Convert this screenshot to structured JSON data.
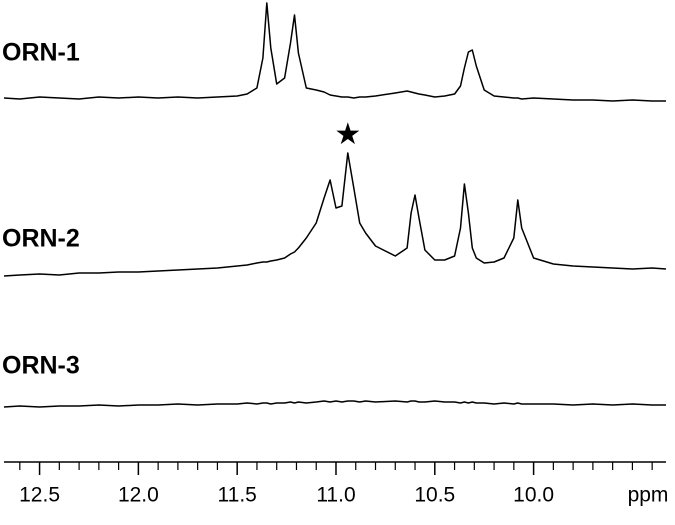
{
  "chart_data": {
    "type": "line",
    "x_label": "ppm",
    "xlim": [
      12.68,
      9.33
    ],
    "xticks": [
      {
        "value": 12.5,
        "label": "12.5"
      },
      {
        "value": 12,
        "label": "12.0"
      },
      {
        "value": 11.5,
        "label": "11.5"
      },
      {
        "value": 11,
        "label": "11.0"
      },
      {
        "value": 10.5,
        "label": "10.5"
      },
      {
        "value": 10,
        "label": "10.0"
      }
    ],
    "xminorticks": [
      12.6,
      12.4,
      12.3,
      12.2,
      12.1,
      11.9,
      11.8,
      11.7,
      11.6,
      11.4,
      11.3,
      11.2,
      11.1,
      10.9,
      10.8,
      10.7,
      10.6,
      10.4,
      10.3,
      10.2,
      10.1,
      9.9,
      9.8,
      9.7,
      9.6,
      9.5,
      9.4
    ],
    "ylim": [
      -10,
      120
    ],
    "x": [
      12.68,
      12.6,
      12.5,
      12.4,
      12.3,
      12.2,
      12.1,
      12.0,
      11.9,
      11.8,
      11.7,
      11.6,
      11.5,
      11.45,
      11.4,
      11.37,
      11.35,
      11.33,
      11.3,
      11.26,
      11.23,
      11.21,
      11.19,
      11.15,
      11.1,
      11.06,
      11.03,
      11.0,
      10.97,
      10.94,
      10.91,
      10.88,
      10.85,
      10.8,
      10.7,
      10.64,
      10.62,
      10.6,
      10.58,
      10.55,
      10.5,
      10.45,
      10.4,
      10.37,
      10.35,
      10.33,
      10.31,
      10.29,
      10.25,
      10.2,
      10.15,
      10.1,
      10.08,
      10.06,
      10.0,
      9.9,
      9.8,
      9.7,
      9.6,
      9.5,
      9.4,
      9.33
    ],
    "series": [
      {
        "name": "ORN-1",
        "color": "#000000",
        "values": [
          0,
          -1,
          1,
          0,
          -1,
          1,
          0,
          1,
          0,
          1,
          0,
          1,
          2,
          4,
          10,
          40,
          95,
          50,
          14,
          20,
          55,
          83,
          45,
          10,
          8,
          6,
          3,
          2,
          1,
          1,
          0,
          1,
          1,
          2,
          5,
          7,
          6,
          5,
          4,
          3,
          1,
          2,
          4,
          12,
          30,
          46,
          48,
          32,
          8,
          2,
          1,
          0,
          0,
          -1,
          0,
          -1,
          -2,
          -2,
          -3,
          -2,
          -3,
          -3
        ]
      },
      {
        "name": "ORN-2",
        "color": "#000000",
        "values": [
          -8,
          -7,
          -6,
          -7,
          -5,
          -5,
          -4,
          -4,
          -3,
          -2,
          -1,
          0,
          2,
          3,
          5,
          6,
          6,
          7,
          8,
          10,
          14,
          16,
          20,
          30,
          45,
          70,
          88,
          60,
          62,
          115,
          80,
          45,
          35,
          22,
          12,
          20,
          55,
          73,
          50,
          18,
          8,
          8,
          12,
          40,
          84,
          55,
          20,
          10,
          5,
          6,
          10,
          30,
          68,
          40,
          10,
          4,
          2,
          1,
          0,
          -1,
          0,
          -1
        ]
      },
      {
        "name": "ORN-3",
        "color": "#000000",
        "values": [
          -3,
          -2,
          -3,
          -2,
          -2,
          -1,
          -2,
          -1,
          -1,
          0,
          -1,
          0,
          0,
          1,
          0,
          1,
          1,
          0,
          1,
          1,
          2,
          1,
          2,
          1,
          2,
          3,
          2,
          3,
          2,
          3,
          3,
          2,
          3,
          2,
          3,
          2,
          3,
          3,
          2,
          2,
          3,
          2,
          2,
          1,
          2,
          1,
          2,
          1,
          1,
          0,
          1,
          0,
          1,
          0,
          0,
          0,
          -1,
          0,
          -1,
          0,
          -1,
          -1
        ]
      }
    ],
    "annotation": {
      "text": "★",
      "x": 10.94
    }
  }
}
